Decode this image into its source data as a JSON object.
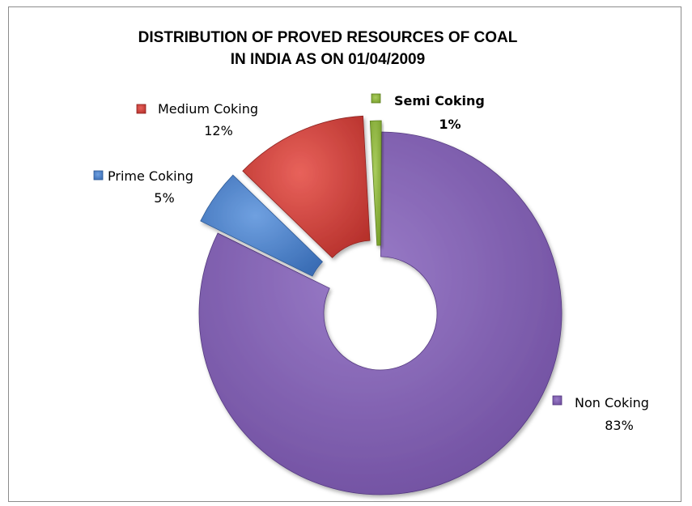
{
  "chart_data": {
    "type": "pie",
    "title_lines": [
      "DISTRIBUTION OF PROVED RESOURCES OF COAL",
      "IN INDIA AS ON 01/04/2009"
    ],
    "style": "exploded doughnut",
    "series": [
      {
        "name": "Prime Coking",
        "value": 5,
        "label": "5%",
        "color": "#4a7fc8",
        "bold": false
      },
      {
        "name": "Medium Coking",
        "value": 12,
        "label": "12%",
        "color": "#d23f3a",
        "bold": false
      },
      {
        "name": "Semi Coking",
        "value": 1,
        "label": "1%",
        "color": "#8db63c",
        "bold": true
      },
      {
        "name": "Non Coking",
        "value": 83,
        "label": "83%",
        "color": "#7b5aaa",
        "bold": false
      }
    ]
  }
}
